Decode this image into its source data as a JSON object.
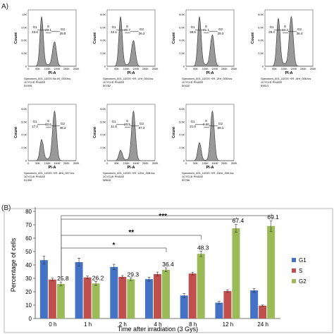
{
  "panel_a": {
    "label": "A)",
    "x_axis_label": "PI-A",
    "y_axis_label": "Count",
    "histograms": [
      {
        "g1_label": "G1",
        "g1": "43.6",
        "s_label": "S",
        "s": "29.1",
        "g2_label": "G2",
        "g2": "25.8",
        "y_ticks": [
          "0",
          "3.0K",
          "6.0K",
          "9.0K",
          "12K"
        ],
        "x_ticks": [
          "0",
          "50K",
          "100K",
          "150K",
          "200K",
          "250K"
        ],
        "caption1": "Specimen_001_U2OS No IR_003.fcs",
        "caption2": "1CYCLE PHASE",
        "caption3": "51905"
      },
      {
        "g1_label": "G1",
        "g1": "42.1",
        "s_label": "S",
        "s": "30.7",
        "g2_label": "G2",
        "g2": "26.2",
        "y_ticks": [
          "0",
          "2.0K",
          "4.0K",
          "6.0K",
          "8.0K"
        ],
        "x_ticks": [
          "0",
          "50K",
          "100K",
          "150K",
          "200K",
          "250K"
        ],
        "caption1": "Specimen_001_U2OS +IR -1Hr_004.fcs",
        "caption2": "1CYCLE PHASE",
        "caption3": "50782"
      },
      {
        "g1_label": "G1",
        "g1": "38.5",
        "s_label": "S",
        "s": "31.1",
        "g2_label": "G2",
        "g2": "29.3",
        "y_ticks": [
          "0",
          "2.0K",
          "4.0K",
          "6.0K",
          "8.0K"
        ],
        "x_ticks": [
          "0",
          "50K",
          "100K",
          "150K",
          "200K",
          "250K"
        ],
        "caption1": "Specimen_001_U2OS +IR -2Hr_005.fcs",
        "caption2": "1CYCLE PHASE",
        "caption3": "50432"
      },
      {
        "g1_label": "G1",
        "g1": "29.4",
        "s_label": "S",
        "s": "33.2",
        "g2_label": "G2",
        "g2": "36.4",
        "y_ticks": [
          "0",
          "2.0K",
          "4.0K",
          "6.0K",
          "8.0K"
        ],
        "x_ticks": [
          "0",
          "50K",
          "100K",
          "150K",
          "200K",
          "250K"
        ],
        "caption1": "Specimen_001_U2OS +IR -4Hr_006.fcs",
        "caption2": "1CYCLE PHASE",
        "caption3": "50613"
      },
      {
        "g1_label": "G1",
        "g1": "17.2",
        "s_label": "S",
        "s": "33.6",
        "g2_label": "G2",
        "g2": "48.3",
        "y_ticks": [
          "0",
          "2.0K",
          "4.0K",
          "6.0K",
          "8.0K"
        ],
        "x_ticks": [
          "0",
          "50K",
          "100K",
          "150K",
          "200K",
          "250K"
        ],
        "caption1": "Specimen_001_U2OS +IR -8Hr_007.fcs",
        "caption2": "1CYCLE PHASE",
        "caption3": "51359"
      },
      {
        "g1_label": "G1",
        "g1": "11.8",
        "s_label": "S",
        "s": "20.5",
        "g2_label": "G2",
        "g2": "67.4",
        "y_ticks": [
          "0",
          "2.0K",
          "4.0K",
          "6.0K",
          "8.0K"
        ],
        "x_ticks": [
          "0",
          "50K",
          "100K",
          "150K",
          "200K",
          "250K"
        ],
        "caption1": "Specimen_001_U2OS +IR -12Hr_008.fcs",
        "caption2": "1CYCLE PHASE",
        "caption3": "50618"
      },
      {
        "g1_label": "G1",
        "g1": "21.0",
        "s_label": "S",
        "s": "9.60",
        "g2_label": "G2",
        "g2": "69.1",
        "y_ticks": [
          "0",
          "2.0K",
          "4.0K",
          "6.0K",
          "8.0K"
        ],
        "x_ticks": [
          "0",
          "50K",
          "100K",
          "150K",
          "200K",
          "250K"
        ],
        "caption1": "Specimen_001_U2OS +IR -24Hr_009.fcs",
        "caption2": "1CYCLE PHASE",
        "caption3": "52785"
      }
    ]
  },
  "panel_b": {
    "label": "(B)"
  },
  "chart_data": {
    "type": "bar",
    "categories": [
      "0 h",
      "1 h",
      "2 h",
      "4 h",
      "8 h",
      "12 h",
      "24 h"
    ],
    "series": [
      {
        "name": "G1",
        "color": "#4472c4",
        "values": [
          43.6,
          42.1,
          38.5,
          29.4,
          17.2,
          11.8,
          21.0
        ],
        "errors": [
          3,
          3,
          2,
          1.5,
          1.5,
          1,
          1.5
        ]
      },
      {
        "name": "S",
        "color": "#c0504d",
        "values": [
          29.1,
          30.7,
          31.1,
          33.2,
          33.6,
          20.5,
          9.6
        ],
        "errors": [
          1,
          1,
          1,
          1.5,
          1,
          1,
          0.5
        ]
      },
      {
        "name": "G2",
        "color": "#9bbb59",
        "values": [
          25.8,
          26.2,
          29.3,
          36.4,
          48.3,
          67.4,
          69.1
        ],
        "errors": [
          1.5,
          1.5,
          1,
          1.5,
          2,
          3,
          4
        ]
      }
    ],
    "data_labels": {
      "G2": [
        "25.8",
        "26.2",
        "29.3",
        "36.4",
        "48.3",
        "67.4",
        "69.1"
      ]
    },
    "ylabel": "Percentage of cells",
    "xlabel": "Time after irradiation (3 Gys)",
    "ylim": [
      0,
      80
    ],
    "y_ticks": [
      "0",
      "10",
      "20",
      "30",
      "40",
      "50",
      "60",
      "70",
      "80"
    ],
    "grid": false,
    "legend_position": "right",
    "significance": [
      {
        "label": "*",
        "to": "4 h"
      },
      {
        "label": "**",
        "to": "8 h"
      },
      {
        "label": "***",
        "to": "12 h"
      },
      {
        "label": "***",
        "to": "24 h"
      }
    ]
  }
}
